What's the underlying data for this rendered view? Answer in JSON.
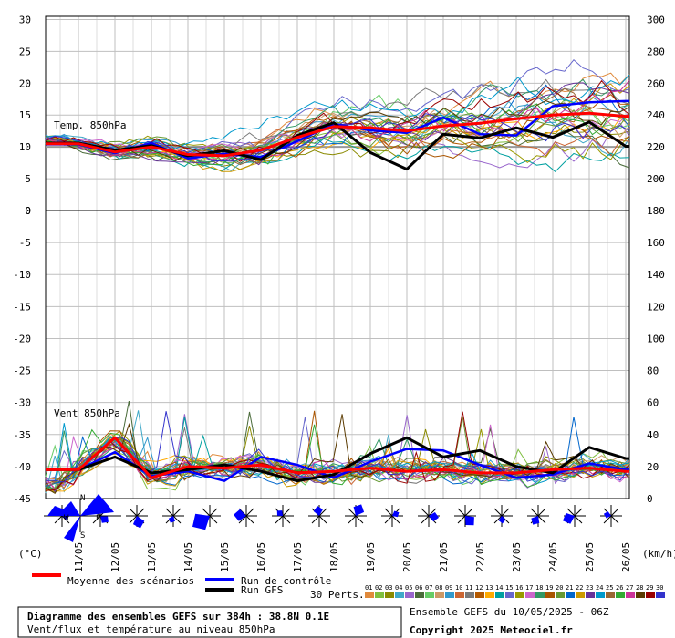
{
  "chart_data": [
    {
      "type": "line",
      "panel_label": "Temp. 850hPa",
      "y_left_ticks": [
        0,
        5,
        10,
        15,
        20,
        25,
        30
      ],
      "y_right_ticks": [
        200,
        220,
        240,
        260,
        280,
        300
      ],
      "ylim": [
        0,
        32
      ],
      "x": [
        "11/05",
        "12/05",
        "13/05",
        "14/05",
        "15/05",
        "16/05",
        "17/05",
        "18/05",
        "19/05",
        "20/05",
        "21/05",
        "22/05",
        "23/05",
        "24/05",
        "25/05",
        "26/05"
      ],
      "series": [
        {
          "name": "Moyenne des scénarios",
          "color": "#ff0000",
          "values": [
            10.5,
            9.2,
            10.0,
            8.8,
            8.6,
            9.5,
            11.5,
            13.2,
            13.0,
            12.5,
            13.3,
            13.7,
            14.4,
            15.0,
            15.3,
            14.8
          ]
        },
        {
          "name": "Run de contrôle",
          "color": "#0000ff",
          "values": [
            10.4,
            9.0,
            10.6,
            8.2,
            8.9,
            8.4,
            10.9,
            13.6,
            12.6,
            12.2,
            14.6,
            12.0,
            11.8,
            16.4,
            17.0,
            17.2
          ]
        },
        {
          "name": "Run GFS",
          "color": "#000000",
          "values": [
            10.6,
            9.5,
            10.2,
            8.6,
            9.4,
            8.0,
            11.8,
            13.8,
            9.1,
            6.5,
            12.0,
            11.4,
            13.0,
            11.5,
            13.9,
            10.1
          ]
        }
      ]
    },
    {
      "type": "line",
      "panel_label": "Vent 850hPa",
      "y_left_ticks": [
        -45,
        -40,
        -35,
        -30,
        -25,
        -20,
        -15,
        -10,
        -5,
        0
      ],
      "y_right_ticks": [
        0,
        20,
        40,
        60,
        80,
        100,
        120,
        140,
        160,
        180
      ],
      "series": [
        {
          "name": "Moyenne des scénarios",
          "color": "#ff0000",
          "values": [
            18,
            38,
            13,
            20,
            19,
            21,
            16,
            17,
            19,
            17,
            18,
            16,
            16,
            18,
            19,
            17
          ]
        },
        {
          "name": "Run de contrôle",
          "color": "#0000ff",
          "values": [
            18,
            29,
            14,
            17,
            11,
            26,
            21,
            13,
            23,
            31,
            30,
            21,
            13,
            15,
            22,
            18
          ]
        },
        {
          "name": "Run GFS",
          "color": "#000000",
          "values": [
            18,
            26,
            16,
            18,
            21,
            17,
            11,
            15,
            28,
            38,
            26,
            30,
            20,
            16,
            32,
            25
          ]
        }
      ]
    }
  ],
  "labels": {
    "unit_left": "(°C)",
    "unit_right": "(km/h)",
    "rose_n": "N",
    "rose_w": "W",
    "rose_e": "E",
    "rose_s": "S"
  },
  "legend": {
    "mean": "Moyenne des scénarios",
    "control": "Run de contrôle",
    "gfs": "Run GFS",
    "perts": "30 Perts.",
    "pert_numbers": [
      "01",
      "02",
      "03",
      "04",
      "05",
      "06",
      "07",
      "08",
      "09",
      "10",
      "11",
      "12",
      "13",
      "14",
      "15",
      "16",
      "17",
      "18",
      "19",
      "20",
      "21",
      "22",
      "23",
      "24",
      "25",
      "26",
      "27",
      "28",
      "29",
      "30"
    ],
    "pert_colors": [
      "#e08a3c",
      "#7fbf3f",
      "#8a8a00",
      "#3fa8c8",
      "#9966cc",
      "#4a6b3a",
      "#66cc66",
      "#cc9966",
      "#3399cc",
      "#cc6633",
      "#7a7a7a",
      "#b35900",
      "#ffaa00",
      "#00a0a0",
      "#6666cc",
      "#999900",
      "#cc66cc",
      "#339966",
      "#aa5500",
      "#669933",
      "#0066cc",
      "#cc9900",
      "#663399",
      "#0099cc",
      "#996633",
      "#33aa33",
      "#cc3399",
      "#5a3a00",
      "#990000",
      "#3333cc"
    ],
    "mean_color": "#ff0000",
    "control_color": "#0000ff",
    "gfs_color": "#000000"
  },
  "footer": {
    "title": "Diagramme des ensembles GEFS sur 384h : 38.8N 0.1E",
    "subtitle": "Vent/flux et température au niveau 850hPa",
    "run": "Ensemble GEFS du 10/05/2025 - 06Z",
    "copyright": "Copyright 2025 Meteociel.fr"
  }
}
